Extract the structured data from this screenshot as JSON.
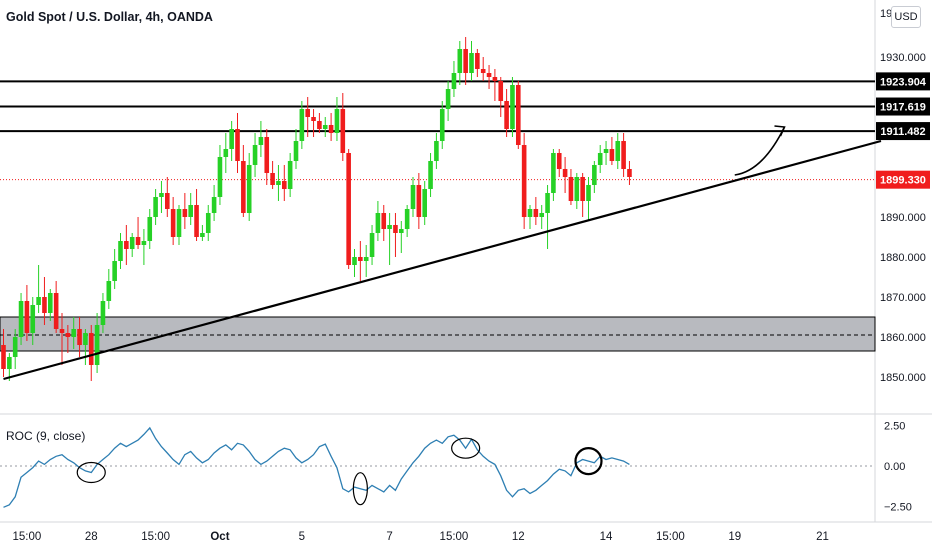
{
  "header": {
    "title": "Gold Spot / U.S. Dollar, 4h, OANDA",
    "currency": "USD",
    "roc_title": "ROC (9, close)"
  },
  "colors": {
    "bull": "#26d126",
    "bear": "#f01d1d",
    "zone_fill": "#b8babf",
    "roc_line": "#2e7fb3",
    "last_price": "#f01d1d",
    "level": "#000000"
  },
  "chart_data": [
    {
      "type": "candlestick",
      "title": "Gold Spot / U.S. Dollar, 4h, OANDA",
      "ylim": [
        1846,
        1944
      ],
      "y_ticks": [
        1850,
        1860,
        1870,
        1880,
        1890,
        1900,
        1910,
        1920,
        1930,
        1940
      ],
      "y_tick_labels": [
        "1850.000",
        "1860.000",
        "1870.000",
        "1880.000",
        "1890.000",
        "",
        "",
        "",
        "1930.000",
        ""
      ],
      "x_ticks": [
        {
          "label": "15:00",
          "bar": 4
        },
        {
          "label": "28",
          "bar": 15
        },
        {
          "label": "15:00",
          "bar": 26
        },
        {
          "label": "Oct",
          "bar": 37
        },
        {
          "label": "5",
          "bar": 51
        },
        {
          "label": "7",
          "bar": 66
        },
        {
          "label": "15:00",
          "bar": 77
        },
        {
          "label": "12",
          "bar": 88
        },
        {
          "label": "14",
          "bar": 103
        },
        {
          "label": "15:00",
          "bar": 114
        },
        {
          "label": "19",
          "bar": 125
        },
        {
          "label": "21",
          "bar": 140
        }
      ],
      "price_labels": [
        {
          "value": 1923.904,
          "label": "1923.904"
        },
        {
          "value": 1917.619,
          "label": "1917.619"
        },
        {
          "value": 1911.482,
          "label": "1911.482"
        },
        {
          "value": 1899.33,
          "label": "1899.330"
        }
      ],
      "horizontal_levels": [
        1923.904,
        1917.619,
        1911.482
      ],
      "last_price": 1899.33,
      "support_zone": {
        "low": 1856.5,
        "high": 1865,
        "mid": 1860.5
      },
      "trendline": [
        {
          "bar": 0,
          "price": 1849.5
        },
        {
          "bar": 150,
          "price": 1909
        }
      ],
      "projection_arrow": [
        {
          "bar": 125,
          "price": 1900.5
        },
        {
          "bar": 133.5,
          "price": 1912.5
        }
      ],
      "ohlc": [
        [
          1858,
          1862,
          1850,
          1852
        ],
        [
          1852,
          1856,
          1849,
          1855
        ],
        [
          1855,
          1862,
          1852,
          1860
        ],
        [
          1860,
          1871,
          1858,
          1869
        ],
        [
          1869,
          1873,
          1859,
          1861
        ],
        [
          1861,
          1870,
          1858,
          1868
        ],
        [
          1868,
          1878,
          1866,
          1870
        ],
        [
          1870,
          1875,
          1863,
          1866
        ],
        [
          1866,
          1872,
          1864,
          1871
        ],
        [
          1871,
          1874,
          1861,
          1862
        ],
        [
          1862,
          1866,
          1853,
          1861
        ],
        [
          1861,
          1863,
          1856,
          1860
        ],
        [
          1860,
          1865,
          1857,
          1862
        ],
        [
          1862,
          1865,
          1855,
          1858
        ],
        [
          1858,
          1862,
          1853,
          1861
        ],
        [
          1861,
          1863,
          1849,
          1853
        ],
        [
          1853,
          1866,
          1851,
          1863
        ],
        [
          1863,
          1871,
          1861,
          1869
        ],
        [
          1869,
          1877,
          1867,
          1874
        ],
        [
          1874,
          1882,
          1872,
          1879
        ],
        [
          1879,
          1886,
          1877,
          1884
        ],
        [
          1884,
          1888,
          1878,
          1882
        ],
        [
          1882,
          1886,
          1880,
          1885
        ],
        [
          1885,
          1890,
          1882,
          1883
        ],
        [
          1883,
          1887,
          1878,
          1884
        ],
        [
          1884,
          1892,
          1882,
          1890
        ],
        [
          1890,
          1897,
          1888,
          1895
        ],
        [
          1895,
          1899,
          1891,
          1896
        ],
        [
          1896,
          1900,
          1890,
          1892
        ],
        [
          1892,
          1895,
          1883,
          1885
        ],
        [
          1885,
          1893,
          1883,
          1892
        ],
        [
          1892,
          1896,
          1887,
          1890
        ],
        [
          1890,
          1896,
          1888,
          1893
        ],
        [
          1893,
          1897,
          1884,
          1885
        ],
        [
          1885,
          1888,
          1884,
          1886
        ],
        [
          1886,
          1893,
          1884,
          1891
        ],
        [
          1891,
          1898,
          1889,
          1895
        ],
        [
          1895,
          1908,
          1893,
          1905
        ],
        [
          1905,
          1911,
          1901,
          1907
        ],
        [
          1907,
          1914,
          1904,
          1912
        ],
        [
          1912,
          1916,
          1901,
          1904
        ],
        [
          1904,
          1908,
          1890,
          1891
        ],
        [
          1891,
          1906,
          1889,
          1903
        ],
        [
          1903,
          1911,
          1900,
          1908
        ],
        [
          1908,
          1914,
          1905,
          1910
        ],
        [
          1910,
          1912,
          1898,
          1901
        ],
        [
          1901,
          1904,
          1897,
          1898
        ],
        [
          1898,
          1903,
          1894,
          1899
        ],
        [
          1899,
          1903,
          1894,
          1897
        ],
        [
          1897,
          1906,
          1895,
          1904
        ],
        [
          1904,
          1912,
          1902,
          1909
        ],
        [
          1909,
          1919,
          1907,
          1917
        ],
        [
          1917,
          1920,
          1910,
          1915
        ],
        [
          1915,
          1917,
          1910,
          1914
        ],
        [
          1914,
          1916,
          1911,
          1912
        ],
        [
          1912,
          1915,
          1910,
          1913
        ],
        [
          1913,
          1916,
          1909,
          1911
        ],
        [
          1911,
          1920,
          1909,
          1917
        ],
        [
          1917,
          1921,
          1904,
          1906
        ],
        [
          1906,
          1907,
          1877,
          1878
        ],
        [
          1878,
          1882,
          1875,
          1880
        ],
        [
          1880,
          1884,
          1874,
          1879
        ],
        [
          1879,
          1883,
          1875,
          1880
        ],
        [
          1880,
          1888,
          1878,
          1886
        ],
        [
          1886,
          1894,
          1884,
          1891
        ],
        [
          1891,
          1893,
          1884,
          1887
        ],
        [
          1887,
          1891,
          1878,
          1888
        ],
        [
          1888,
          1891,
          1880,
          1886
        ],
        [
          1886,
          1889,
          1881,
          1887
        ],
        [
          1887,
          1893,
          1885,
          1892
        ],
        [
          1892,
          1900,
          1890,
          1898
        ],
        [
          1898,
          1901,
          1887,
          1890
        ],
        [
          1890,
          1899,
          1888,
          1897
        ],
        [
          1897,
          1906,
          1895,
          1904
        ],
        [
          1904,
          1911,
          1902,
          1909
        ],
        [
          1909,
          1919,
          1907,
          1917
        ],
        [
          1917,
          1924,
          1914,
          1922
        ],
        [
          1922,
          1929,
          1920,
          1926
        ],
        [
          1926,
          1934,
          1923,
          1932
        ],
        [
          1932,
          1935,
          1923,
          1926
        ],
        [
          1926,
          1934,
          1924,
          1931
        ],
        [
          1931,
          1932,
          1925,
          1927
        ],
        [
          1927,
          1930,
          1924,
          1926
        ],
        [
          1926,
          1928,
          1922,
          1925
        ],
        [
          1925,
          1927,
          1919,
          1924
        ],
        [
          1924,
          1925,
          1915,
          1919
        ],
        [
          1919,
          1922,
          1910,
          1912
        ],
        [
          1912,
          1925,
          1910,
          1923
        ],
        [
          1923,
          1924,
          1907,
          1908
        ],
        [
          1908,
          1911,
          1887,
          1890
        ],
        [
          1890,
          1893,
          1887,
          1892
        ],
        [
          1892,
          1895,
          1888,
          1890
        ],
        [
          1890,
          1893,
          1887,
          1891
        ],
        [
          1891,
          1898,
          1882,
          1896
        ],
        [
          1896,
          1907,
          1894,
          1906
        ],
        [
          1906,
          1907,
          1900,
          1902
        ],
        [
          1902,
          1905,
          1896,
          1900
        ],
        [
          1900,
          1902,
          1893,
          1894
        ],
        [
          1894,
          1901,
          1892,
          1900
        ],
        [
          1900,
          1901,
          1890,
          1894
        ],
        [
          1894,
          1900,
          1889,
          1898
        ],
        [
          1898,
          1904,
          1896,
          1903
        ],
        [
          1903,
          1908,
          1901,
          1906
        ],
        [
          1906,
          1909,
          1903,
          1907
        ],
        [
          1907,
          1910,
          1903,
          1904
        ],
        [
          1904,
          1911,
          1902,
          1909
        ],
        [
          1909,
          1911,
          1900,
          1902
        ],
        [
          1902,
          1904,
          1898,
          1900
        ]
      ]
    },
    {
      "type": "line",
      "title": "ROC (9, close)",
      "ylim": [
        -3.3,
        3.0
      ],
      "y_ticks": [
        2.5,
        0,
        -2.5
      ],
      "y_tick_labels": [
        "2.50",
        "0.00",
        "−2.50"
      ],
      "zero_line": 0,
      "circled_bars": [
        15,
        61,
        79,
        100
      ],
      "values": [
        -2.55,
        -2.4,
        -1.9,
        -0.7,
        -0.4,
        -0.1,
        0.3,
        0.1,
        0.4,
        0.6,
        0.7,
        0.4,
        0.2,
        -0.1,
        -0.3,
        -0.4,
        0.1,
        0.4,
        0.7,
        1.1,
        1.4,
        1.2,
        1.4,
        1.6,
        1.95,
        2.35,
        1.7,
        1.2,
        0.8,
        0.4,
        0.1,
        0.7,
        0.9,
        0.5,
        0.2,
        0.4,
        0.8,
        1.1,
        1.3,
        1.0,
        1.4,
        1.3,
        0.9,
        0.4,
        0.1,
        0.3,
        0.6,
        0.9,
        1.1,
        1.0,
        0.5,
        0.2,
        0.4,
        0.7,
        1.2,
        1.35,
        0.6,
        -0.1,
        -1.4,
        -1.6,
        -1.3,
        -1.4,
        -1.5,
        -1.2,
        -1.4,
        -1.6,
        -1.2,
        -1.5,
        -0.8,
        -0.3,
        0.2,
        0.6,
        1.1,
        1.4,
        1.6,
        1.4,
        1.8,
        1.9,
        1.6,
        1.1,
        1.65,
        1.0,
        0.6,
        0.3,
        0.1,
        -0.6,
        -1.5,
        -1.9,
        -1.5,
        -1.4,
        -1.7,
        -1.5,
        -1.2,
        -0.9,
        -0.5,
        -0.2,
        -0.3,
        -0.6,
        0.2,
        0.4,
        0.3,
        0.2,
        0.6,
        0.4,
        0.5,
        0.4,
        0.3,
        0.1
      ]
    }
  ]
}
